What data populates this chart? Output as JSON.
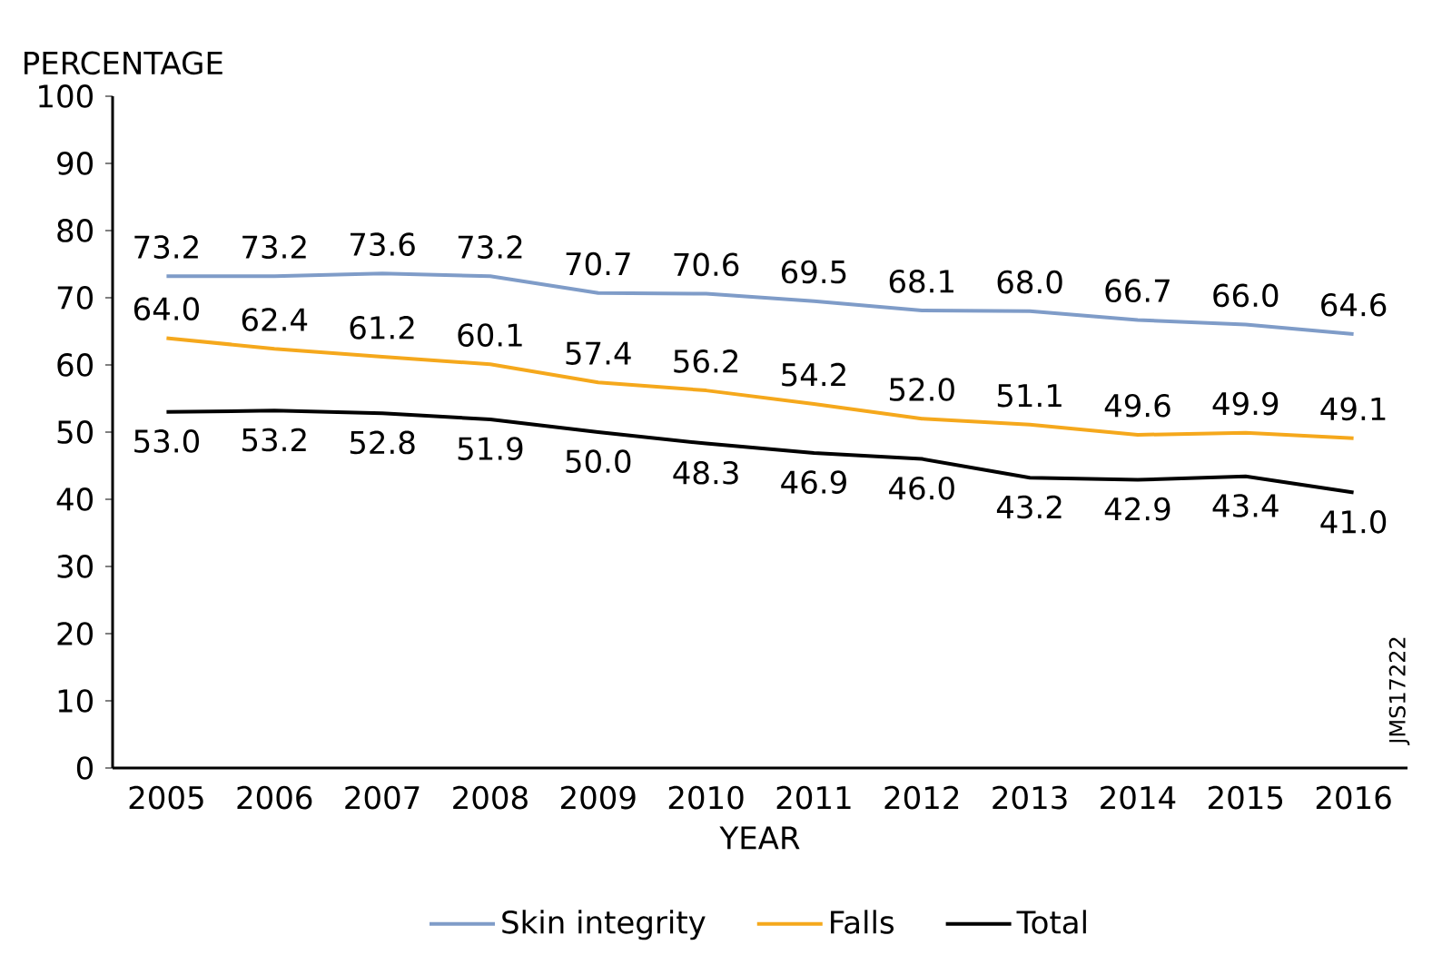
{
  "chart_data": {
    "type": "line",
    "ylabel": "PERCENTAGE",
    "xlabel": "YEAR",
    "categories": [
      "2005",
      "2006",
      "2007",
      "2008",
      "2009",
      "2010",
      "2011",
      "2012",
      "2013",
      "2014",
      "2015",
      "2016"
    ],
    "series": [
      {
        "name": "Skin integrity",
        "color": "#7f9cc8",
        "values": [
          73.2,
          73.2,
          73.6,
          73.2,
          70.7,
          70.6,
          69.5,
          68.1,
          68.0,
          66.7,
          66.0,
          64.6
        ],
        "value_labels": [
          "73.2",
          "73.2",
          "73.6",
          "73.2",
          "70.7",
          "70.6",
          "69.5",
          "68.1",
          "68.0",
          "66.7",
          "66.0",
          "64.6"
        ]
      },
      {
        "name": "Falls",
        "color": "#f5a81c",
        "values": [
          64.0,
          62.4,
          61.2,
          60.1,
          57.4,
          56.2,
          54.2,
          52.0,
          51.1,
          49.6,
          49.9,
          49.1
        ],
        "value_labels": [
          "64.0",
          "62.4",
          "61.2",
          "60.1",
          "57.4",
          "56.2",
          "54.2",
          "52.0",
          "51.1",
          "49.6",
          "49.9",
          "49.1"
        ]
      },
      {
        "name": "Total",
        "color": "#000000",
        "values": [
          53.0,
          53.2,
          52.8,
          51.9,
          50.0,
          48.3,
          46.9,
          46.0,
          43.2,
          42.9,
          43.4,
          41.0
        ],
        "value_labels": [
          "53.0",
          "53.2",
          "52.8",
          "51.9",
          "50.0",
          "48.3",
          "46.9",
          "46.0",
          "43.2",
          "42.9",
          "43.4",
          "41.0"
        ]
      }
    ],
    "ylim": [
      0,
      100
    ],
    "yticks": [
      0,
      10,
      20,
      30,
      40,
      50,
      60,
      70,
      80,
      90,
      100
    ],
    "grid": false,
    "legend": "bottom",
    "marker": "none",
    "line_style": "solid",
    "annotations": [
      "JMS17222"
    ]
  }
}
